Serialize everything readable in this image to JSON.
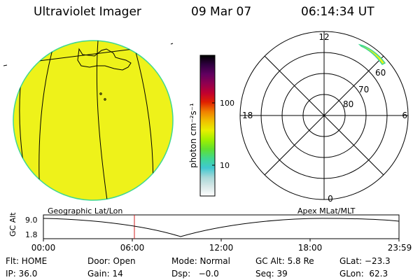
{
  "header": {
    "title": "Ultraviolet Imager",
    "date": "09 Mar 07",
    "time": "06:14:34 UT"
  },
  "colorbar": {
    "unit_label": "photon cm⁻²s⁻¹",
    "tick_labels": [
      "100",
      "10"
    ],
    "colors": [
      "#ffffff",
      "#d8e8e8",
      "#a8d8d8",
      "#40c8d0",
      "#40d890",
      "#60e030",
      "#a0f000",
      "#e8f000",
      "#f0c000",
      "#f08000",
      "#e02000",
      "#c00030",
      "#900050",
      "#600060",
      "#300040",
      "#000000"
    ]
  },
  "polar_plot": {
    "mlt_labels": {
      "top": "12",
      "left": "18",
      "right": "6",
      "bottom": "0"
    },
    "lat_labels": [
      "60",
      "70",
      "80"
    ]
  },
  "projection_labels": {
    "left": "Geographic Lat/Lon",
    "right": "Apex MLat/MLT"
  },
  "altitude_strip": {
    "axis_label": "GC Alt",
    "y_ticks": [
      "9.0",
      "1.8"
    ],
    "x_ticks": [
      "00:00",
      "06:00",
      "12:00",
      "18:00",
      "23:59"
    ]
  },
  "status": {
    "row1": {
      "flt": "Flt: HOME",
      "door": "Door: Open",
      "mode": "Mode: Normal",
      "gc_alt": "GC Alt: 5.8 Re",
      "glat": "GLat: −23.3"
    },
    "row2": {
      "ip": "IP: 36.0",
      "gain": "Gain: 14",
      "dsp": "Dsp:   −0.0",
      "seq": "Seq: 39",
      "glon": "GLon:  62.3"
    }
  },
  "colors": {
    "disk_fill": "#eef21a",
    "disk_edge": "#40d890",
    "marker_line": "#d02020"
  }
}
